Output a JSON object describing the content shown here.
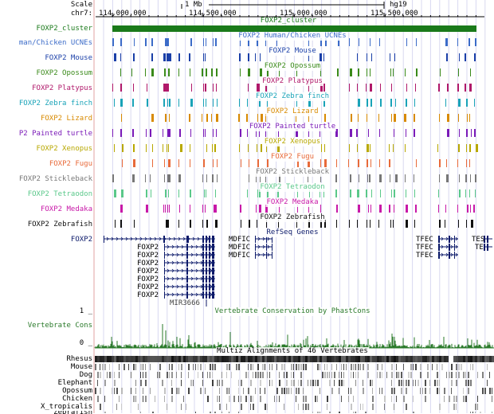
{
  "ruler": {
    "scale_label": "Scale",
    "chrom_label": "chr7:",
    "scale_bar_label": "1 Mb",
    "assembly": "hg19",
    "ticks": [
      "114,000,000",
      "114,500,000",
      "115,000,000",
      "115,500,000"
    ]
  },
  "cluster": {
    "side_label": "FOXP2_cluster",
    "center_label": "FOXP2_cluster",
    "color": "#1a7a1a"
  },
  "tracks": [
    {
      "side": "man/Chicken UCNEs",
      "center": "FOXP2 Human/Chicken UCNEs",
      "color": "#3b6bc8"
    },
    {
      "side": "FOXP2 Mouse",
      "center": "FOXP2 Mouse",
      "color": "#1a3fa8"
    },
    {
      "side": "FOXP2 Opossum",
      "center": "FOXP2 Opossum",
      "color": "#3a8a1a"
    },
    {
      "side": "FOXP2 Platypus",
      "center": "FOXP2 Platypus",
      "color": "#b0186a"
    },
    {
      "side": "FOXP2 Zebra finch",
      "center": "FOXP2 Zebra finch",
      "color": "#19a3b8"
    },
    {
      "side": "FOXP2 Lizard",
      "center": "FOXP2 Lizard",
      "color": "#d88a00"
    },
    {
      "side": "P2 Painted turtle",
      "center": "FOXP2 Painted turtle",
      "color": "#7a1ab8"
    },
    {
      "side": "FOXP2 Xenopus",
      "center": "FOXP2 Xenopus",
      "color": "#b8a800"
    },
    {
      "side": "FOXP2 Fugu",
      "center": "FOXP2 Fugu",
      "color": "#e86a3a"
    },
    {
      "side": "FOXP2 Stickleback",
      "center": "FOXP2 Stickleback",
      "color": "#777777"
    },
    {
      "side": "FOXP2 Tetraodon",
      "center": "FOXP2 Tetraodon",
      "color": "#5ac88a"
    },
    {
      "side": "FOXP2 Medaka",
      "center": "FOXP2 Medaka",
      "color": "#c818a8"
    },
    {
      "side": "FOXP2 Zebrafish",
      "center": "FOXP2 Zebrafish",
      "color": "#111111"
    }
  ],
  "refseq": {
    "center": "RefSeq Genes",
    "side": "FOXP2",
    "foxp2_labels": [
      "FOXP2",
      "FOXP2",
      "FOXP2",
      "FOXP2",
      "FOXP2",
      "FOXP2",
      "FOXP2"
    ],
    "mdfic_labels": [
      "MDFIC",
      "MDFIC",
      "MDFIC"
    ],
    "tfec_labels": [
      "TFEC",
      "TFEC",
      "TFEC"
    ],
    "tes_labels": [
      "TES",
      "TE"
    ],
    "mir_label": "MIR3666",
    "color": "#0c1a6a"
  },
  "conservation": {
    "center": "Vertebrate Conservation by PhastCons",
    "side": "Vertebrate Cons",
    "ymax_label": "1 _",
    "ymin_label": "0 _",
    "color": "#2a7a2a"
  },
  "multiz": {
    "center": "Multiz Alignments of 46 Vertebrates",
    "species": [
      "Rhesus",
      "Mouse",
      "Dog",
      "Elephant",
      "Opossum",
      "Chicken",
      "X_tropicalis",
      "Zebrafish"
    ]
  }
}
